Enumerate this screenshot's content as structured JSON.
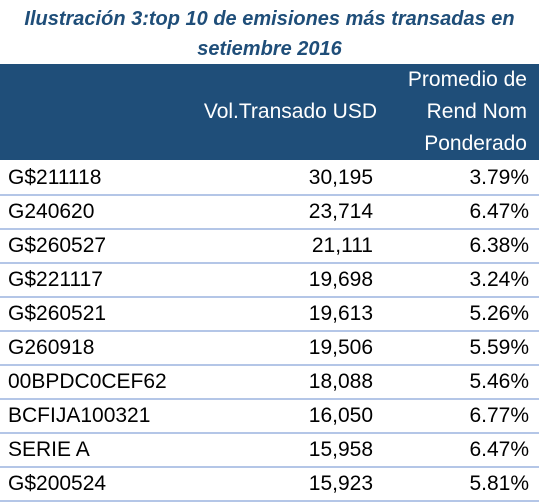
{
  "title_line1": "Ilustración 3:top 10 de emisiones más transadas en",
  "title_line2": "setiembre 2016",
  "header": {
    "col1": "",
    "col2": "Vol.Transado USD",
    "col3": [
      "Promedio de",
      "Rend Nom",
      "Ponderado"
    ]
  },
  "rows": [
    {
      "emision": "G$211118",
      "vol": "30,195",
      "rend": "3.79%"
    },
    {
      "emision": "G240620",
      "vol": "23,714",
      "rend": "6.47%"
    },
    {
      "emision": "G$260527",
      "vol": "21,111",
      "rend": "6.38%"
    },
    {
      "emision": "G$221117",
      "vol": "19,698",
      "rend": "3.24%"
    },
    {
      "emision": "G$260521",
      "vol": "19,613",
      "rend": "5.26%"
    },
    {
      "emision": "G260918",
      "vol": "19,506",
      "rend": "5.59%"
    },
    {
      "emision": "00BPDC0CEF62",
      "vol": "18,088",
      "rend": "5.46%"
    },
    {
      "emision": "BCFIJA100321",
      "vol": "16,050",
      "rend": "6.77%"
    },
    {
      "emision": "SERIE A",
      "vol": "15,958",
      "rend": "6.47%"
    },
    {
      "emision": "G$200524",
      "vol": "15,923",
      "rend": "5.81%"
    }
  ]
}
